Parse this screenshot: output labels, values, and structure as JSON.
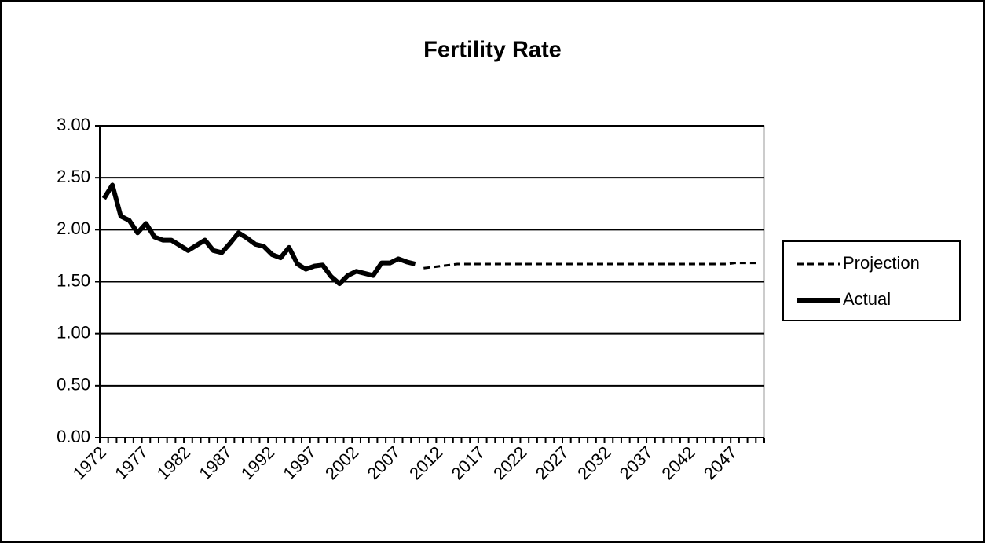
{
  "chart_data": {
    "type": "line",
    "title": "Fertility Rate",
    "categories": [
      "1972",
      null,
      null,
      null,
      null,
      "1977",
      null,
      null,
      null,
      null,
      "1982",
      null,
      null,
      null,
      null,
      "1987",
      null,
      null,
      null,
      null,
      "1992",
      null,
      null,
      null,
      null,
      "1997",
      null,
      null,
      null,
      null,
      "2002",
      null,
      null,
      null,
      null,
      "2007",
      null,
      null,
      null,
      null,
      "2012",
      null,
      null,
      null,
      null,
      "2017",
      null,
      null,
      null,
      null,
      "2022",
      null,
      null,
      null,
      null,
      "2027",
      null,
      null,
      null,
      null,
      "2032",
      null,
      null,
      null,
      null,
      "2037",
      null,
      null,
      null,
      null,
      "2042",
      null,
      null,
      null,
      null,
      "2047",
      null,
      null,
      null
    ],
    "series": [
      {
        "name": "Projection",
        "color": "#000000",
        "dashed": true,
        "values": [
          null,
          null,
          null,
          null,
          null,
          null,
          null,
          null,
          null,
          null,
          null,
          null,
          null,
          null,
          null,
          null,
          null,
          null,
          null,
          null,
          null,
          null,
          null,
          null,
          null,
          null,
          null,
          null,
          null,
          null,
          null,
          null,
          null,
          null,
          null,
          null,
          null,
          null,
          1.63,
          1.64,
          1.65,
          1.66,
          1.67,
          1.67,
          1.67,
          1.67,
          1.67,
          1.67,
          1.67,
          1.67,
          1.67,
          1.67,
          1.67,
          1.67,
          1.67,
          1.67,
          1.67,
          1.67,
          1.67,
          1.67,
          1.67,
          1.67,
          1.67,
          1.67,
          1.67,
          1.67,
          1.67,
          1.67,
          1.67,
          1.67,
          1.67,
          1.67,
          1.67,
          1.67,
          1.67,
          1.68,
          1.68,
          1.68,
          1.68
        ]
      },
      {
        "name": "Actual",
        "color": "#000000",
        "dashed": false,
        "values": [
          2.3,
          2.43,
          2.13,
          2.09,
          1.97,
          2.06,
          1.93,
          1.9,
          1.9,
          1.85,
          1.8,
          1.85,
          1.9,
          1.8,
          1.78,
          1.87,
          1.97,
          1.92,
          1.86,
          1.84,
          1.76,
          1.73,
          1.83,
          1.67,
          1.62,
          1.65,
          1.66,
          1.55,
          1.48,
          1.56,
          1.6,
          1.58,
          1.56,
          1.68,
          1.68,
          1.72,
          1.69,
          1.67,
          null,
          null,
          null,
          null,
          null,
          null,
          null,
          null,
          null,
          null,
          null,
          null,
          null,
          null,
          null,
          null,
          null,
          null,
          null,
          null,
          null,
          null,
          null,
          null,
          null,
          null,
          null,
          null,
          null,
          null,
          null,
          null,
          null,
          null,
          null,
          null,
          null,
          null,
          null,
          null,
          null
        ]
      }
    ],
    "ylim": [
      0,
      3
    ],
    "yticks": [
      {
        "value": 0,
        "label": "0.00"
      },
      {
        "value": 0.5,
        "label": "0.50"
      },
      {
        "value": 1,
        "label": "1.00"
      },
      {
        "value": 1.5,
        "label": "1.50"
      },
      {
        "value": 2,
        "label": "2.00"
      },
      {
        "value": 2.5,
        "label": "2.50"
      },
      {
        "value": 3,
        "label": "3.00"
      }
    ],
    "grid": true,
    "legend": "right"
  }
}
